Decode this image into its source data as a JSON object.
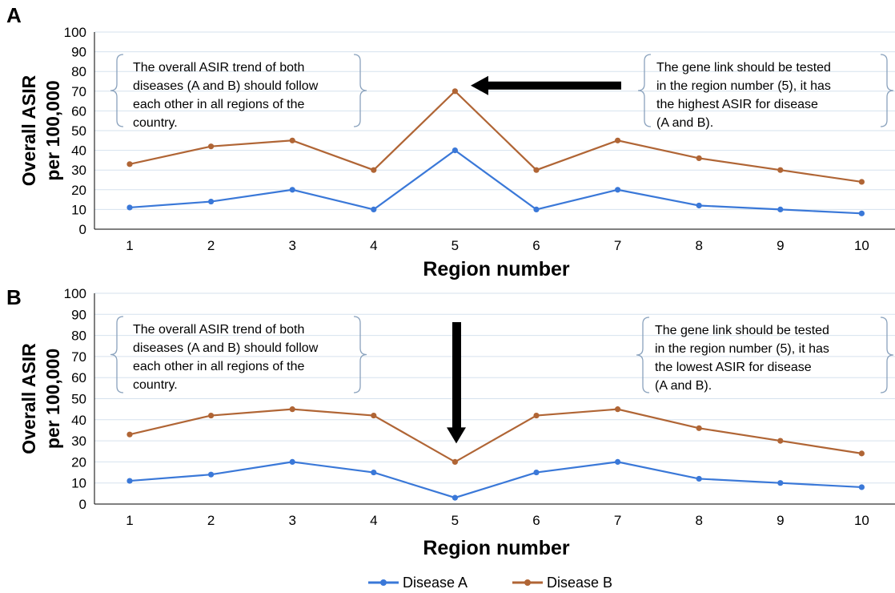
{
  "chart_data": [
    {
      "panel": "A",
      "type": "line",
      "x": [
        1,
        2,
        3,
        4,
        5,
        6,
        7,
        8,
        9,
        10
      ],
      "xlabel": "Region number",
      "ylabel": [
        "Overall ASIR",
        "per 100,000"
      ],
      "ylim": [
        0,
        100
      ],
      "yticks": [
        0,
        10,
        20,
        30,
        40,
        50,
        60,
        70,
        80,
        90,
        100
      ],
      "grid": true,
      "series": [
        {
          "name": "Disease A",
          "color": "#3a78d8",
          "values": [
            11,
            14,
            20,
            10,
            40,
            10,
            20,
            12,
            10,
            8
          ]
        },
        {
          "name": "Disease B",
          "color": "#b06535",
          "values": [
            33,
            42,
            45,
            30,
            70,
            30,
            45,
            36,
            30,
            24
          ]
        }
      ],
      "annotations": [
        {
          "lines": [
            "The overall ASIR trend of both",
            "diseases (A and B) should follow",
            "each other in all regions of the",
            "country."
          ]
        },
        {
          "lines": [
            "The gene link should be tested",
            "in the region number (5), it has",
            "the highest ASIR for disease",
            "(A and B)."
          ]
        }
      ],
      "arrow": "horizontal, pointing left at region 5 peak"
    },
    {
      "panel": "B",
      "type": "line",
      "x": [
        1,
        2,
        3,
        4,
        5,
        6,
        7,
        8,
        9,
        10
      ],
      "xlabel": "Region number",
      "ylabel": [
        "Overall ASIR",
        "per 100,000"
      ],
      "ylim": [
        0,
        100
      ],
      "yticks": [
        0,
        10,
        20,
        30,
        40,
        50,
        60,
        70,
        80,
        90,
        100
      ],
      "grid": true,
      "series": [
        {
          "name": "Disease A",
          "color": "#3a78d8",
          "values": [
            11,
            14,
            20,
            15,
            3,
            15,
            20,
            12,
            10,
            8
          ]
        },
        {
          "name": "Disease B",
          "color": "#b06535",
          "values": [
            33,
            42,
            45,
            42,
            20,
            42,
            45,
            36,
            30,
            24
          ]
        }
      ],
      "annotations": [
        {
          "lines": [
            "The overall ASIR trend of both",
            "diseases (A and B) should follow",
            "each other in all regions of the",
            "country."
          ]
        },
        {
          "lines": [
            "The gene link should be tested",
            "in the region number (5), it has",
            "the lowest ASIR for disease",
            "(A and B)."
          ]
        }
      ],
      "arrow": "vertical, pointing down at region 5 trough"
    }
  ],
  "legend": {
    "position": "bottom-center",
    "items": [
      {
        "label": "Disease A",
        "color": "#3a78d8"
      },
      {
        "label": "Disease B",
        "color": "#b06535"
      }
    ]
  }
}
